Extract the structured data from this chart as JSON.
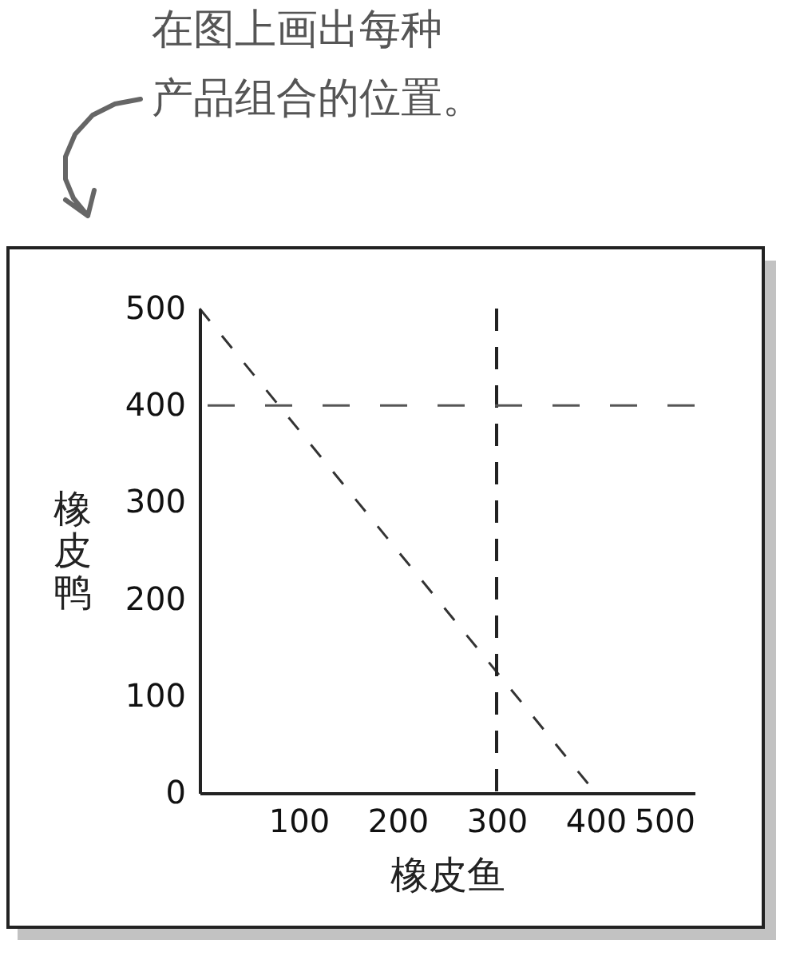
{
  "chart_data": {
    "type": "line",
    "xlabel": "橡皮鱼",
    "ylabel": "橡皮鸭",
    "annotations": [
      "在图上画出每种产品组合的位置。"
    ],
    "xlim": [
      0,
      500
    ],
    "ylim": [
      0,
      500
    ],
    "xticks": [
      100,
      200,
      300,
      400,
      500
    ],
    "yticks": [
      0,
      100,
      200,
      300,
      400,
      500
    ],
    "line_style": "dashed",
    "series": [
      {
        "x": [
          0,
          400
        ],
        "values": [
          500,
          0
        ],
        "color": "#333333"
      }
    ],
    "ref_lines": [
      {
        "axis": "x",
        "value": 300,
        "color": "#222222",
        "line_style": "dashed"
      },
      {
        "axis": "y",
        "value": 400,
        "color": "#555555",
        "line_style": "dashed"
      }
    ]
  }
}
